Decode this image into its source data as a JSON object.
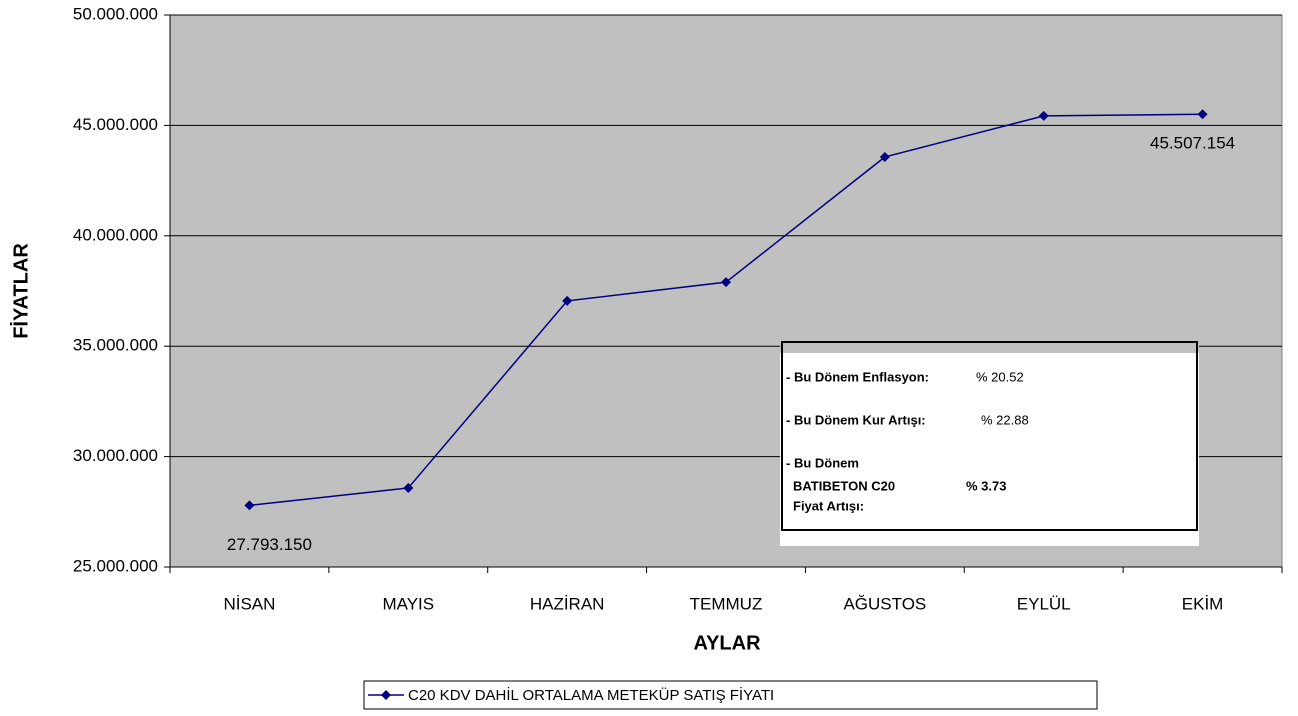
{
  "chart_data": {
    "type": "line",
    "y_axis_label": "FİYATLAR",
    "x_axis_label": "AYLAR",
    "categories": [
      "NİSAN",
      "MAYIS",
      "HAZİRAN",
      "TEMMUZ",
      "AĞUSTOS",
      "EYLÜL",
      "EKİM"
    ],
    "series": [
      {
        "name": "C20 KDV DAHİL ORTALAMA METEKÜP SATIŞ FİYATI",
        "color": "#000080",
        "values": [
          27793150,
          28580000,
          37050000,
          37900000,
          43570000,
          45430000,
          45507154
        ],
        "value_labels": [
          "27.793.150",
          null,
          null,
          null,
          null,
          null,
          "45.507.154"
        ]
      }
    ],
    "ylim": [
      25000000,
      50000000
    ],
    "yticks": [
      {
        "value": 25000000,
        "label": "25.000.000"
      },
      {
        "value": 30000000,
        "label": "30.000.000"
      },
      {
        "value": 35000000,
        "label": "35.000.000"
      },
      {
        "value": 40000000,
        "label": "40.000.000"
      },
      {
        "value": 45000000,
        "label": "45.000.000"
      },
      {
        "value": 50000000,
        "label": "50.000.000"
      }
    ],
    "grid": true,
    "plot_background": "#c0c0c0",
    "legend": "bottom",
    "annotation": [
      [
        "- Bu Dönem Enflasyon:",
        "% 20.52"
      ],
      [
        "- Bu Dönem Kur Artışı:",
        "% 22.88"
      ],
      [
        "- Bu Dönem",
        "BATIBETON C20",
        "Fiyat Artışı:",
        "% 3.73"
      ]
    ]
  }
}
